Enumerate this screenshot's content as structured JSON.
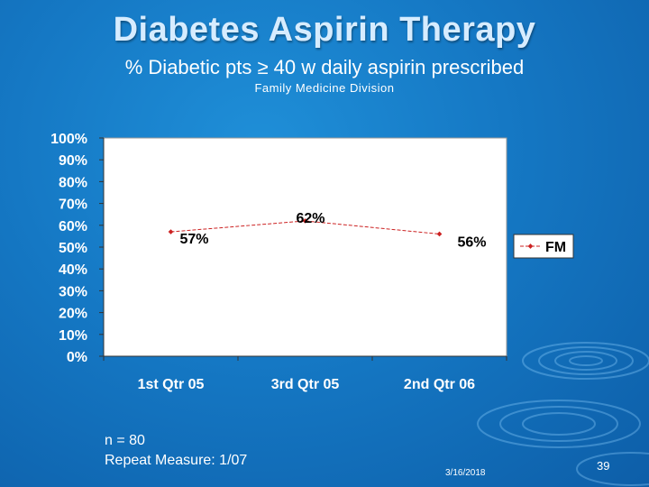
{
  "slide": {
    "title": "Diabetes Aspirin Therapy",
    "subtitle": "% Diabetic pts ≥ 40 w daily aspirin prescribed",
    "division": "Family Medicine Division",
    "footnote_n": "n = 80",
    "footnote_repeat": "Repeat Measure: 1/07",
    "date": "3/16/2018",
    "page_number": "39"
  },
  "colors": {
    "background": "#1578c4",
    "plot_area": "#ffffff",
    "series_line": "#cc2222"
  },
  "chart_data": {
    "type": "line",
    "categories": [
      "1st Qtr 05",
      "3rd Qtr 05",
      "2nd Qtr 06"
    ],
    "series": [
      {
        "name": "FM",
        "values": [
          57,
          62,
          56
        ],
        "labels": [
          "57%",
          "62%",
          "56%"
        ]
      }
    ],
    "ylim": [
      0,
      100
    ],
    "yticks": [
      "0%",
      "10%",
      "20%",
      "30%",
      "40%",
      "50%",
      "60%",
      "70%",
      "80%",
      "90%",
      "100%"
    ],
    "grid": false,
    "legend": "right"
  }
}
